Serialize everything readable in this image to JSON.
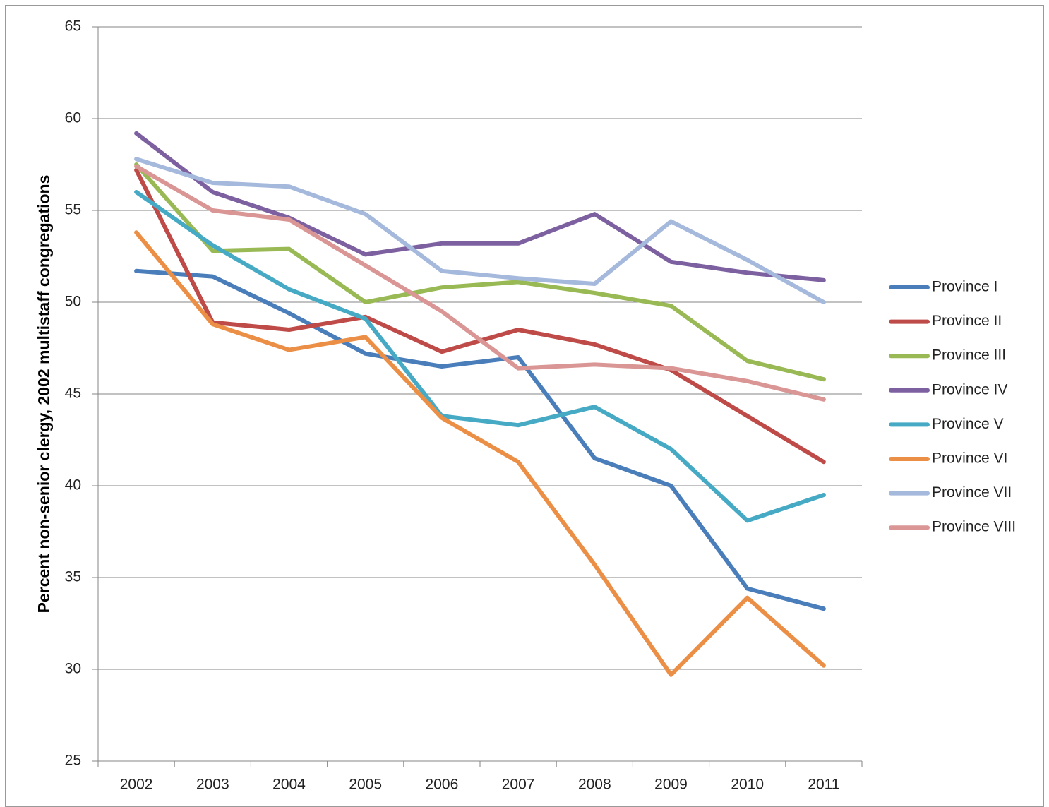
{
  "chart_data": {
    "type": "line",
    "y_label": "Percent non-senior clergy, 2002 multistaff congregations",
    "categories": [
      "2002",
      "2003",
      "2004",
      "2005",
      "2006",
      "2007",
      "2008",
      "2009",
      "2010",
      "2011"
    ],
    "series": [
      {
        "name": "Province I",
        "color": "#4a7ebb",
        "values": [
          51.7,
          51.4,
          49.4,
          47.2,
          46.5,
          47.0,
          41.5,
          40.0,
          34.4,
          33.3
        ]
      },
      {
        "name": "Province II",
        "color": "#be4b48",
        "values": [
          57.2,
          48.9,
          48.5,
          49.2,
          47.3,
          48.5,
          47.7,
          46.3,
          43.8,
          41.3
        ]
      },
      {
        "name": "Province III",
        "color": "#98b954",
        "values": [
          57.5,
          52.8,
          52.9,
          50.0,
          50.8,
          51.1,
          50.5,
          49.8,
          46.8,
          45.8
        ]
      },
      {
        "name": "Province IV",
        "color": "#7d60a0",
        "values": [
          59.2,
          56.0,
          54.6,
          52.6,
          53.2,
          53.2,
          54.8,
          52.2,
          51.6,
          51.2
        ]
      },
      {
        "name": "Province V",
        "color": "#46aac5",
        "values": [
          56.0,
          53.1,
          50.7,
          49.1,
          43.8,
          43.3,
          44.3,
          42.0,
          38.1,
          39.5
        ]
      },
      {
        "name": "Province VI",
        "color": "#ec8f46",
        "values": [
          53.8,
          48.8,
          47.4,
          48.1,
          43.7,
          41.3,
          35.7,
          29.7,
          33.9,
          30.2
        ]
      },
      {
        "name": "Province VII",
        "color": "#a5b9dc",
        "values": [
          57.8,
          56.5,
          56.3,
          54.8,
          51.7,
          51.3,
          51.0,
          54.4,
          52.3,
          50.0
        ]
      },
      {
        "name": "Province VIII",
        "color": "#d99694",
        "values": [
          57.4,
          55.0,
          54.5,
          52.0,
          49.5,
          46.4,
          46.6,
          46.4,
          45.7,
          44.7
        ]
      }
    ],
    "ylim": [
      25,
      65
    ],
    "yticks": [
      25,
      30,
      35,
      40,
      45,
      50,
      55,
      60,
      65
    ],
    "grid": true,
    "legend": "right"
  }
}
